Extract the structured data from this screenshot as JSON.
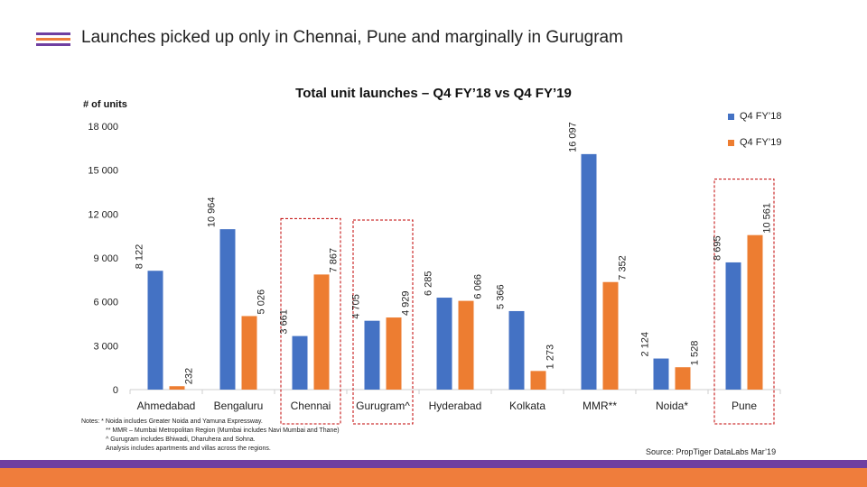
{
  "slide": {
    "title": "Launches picked up only in Chennai, Pune and marginally in Gurugram",
    "title_bar_colors": [
      "#6f3fa1",
      "#ef7d3c",
      "#6f3fa1"
    ]
  },
  "chart_data": {
    "type": "bar",
    "title": "Total unit launches – Q4 FY’18 vs Q4 FY’19",
    "ylabel": "# of units",
    "xlabel": "",
    "ylim": [
      0,
      18000
    ],
    "yticks": [
      0,
      3000,
      6000,
      9000,
      12000,
      15000,
      18000
    ],
    "ytick_labels": [
      "0",
      "3 000",
      "6 000",
      "9 000",
      "12 000",
      "15 000",
      "18 000"
    ],
    "categories": [
      "Ahmedabad",
      "Bengaluru",
      "Chennai",
      "Gurugram^",
      "Hyderabad",
      "Kolkata",
      "MMR**",
      "Noida*",
      "Pune"
    ],
    "series": [
      {
        "name": "Q4 FY’18",
        "color": "#4472c4",
        "values": [
          8122,
          10964,
          3661,
          4705,
          6285,
          5366,
          16097,
          2124,
          8695
        ],
        "labels": [
          "8 122",
          "10 964",
          "3 661",
          "4 705",
          "6 285",
          "5 366",
          "16 097",
          "2 124",
          "8 695"
        ]
      },
      {
        "name": "Q4 FY’19",
        "color": "#ed7d31",
        "values": [
          232,
          5026,
          7867,
          4929,
          6066,
          1273,
          7352,
          1528,
          10561
        ],
        "labels": [
          "232",
          "5 026",
          "7 867",
          "4 929",
          "6 066",
          "1 273",
          "7 352",
          "1 528",
          "10 561"
        ]
      }
    ],
    "highlighted_categories": [
      "Chennai",
      "Gurugram^",
      "Pune"
    ],
    "highlight_color": "#c00000",
    "legend_position": "top-right",
    "grid": false
  },
  "notes": [
    "Notes: * Noida includes Greater Noida and Yamuna Expressway.",
    "** MMR – Mumbai Metropolitan Region (Mumbai includes Navi Mumbai and Thane)",
    "^ Gurugram includes Bhiwadi, Dharuhera and Sohna.",
    "Analysis includes apartments and villas across the regions."
  ],
  "source": "Source: PropTiger DataLabs Mar’19",
  "footer_colors": [
    "#6f3fa1",
    "#ef7d3c"
  ]
}
